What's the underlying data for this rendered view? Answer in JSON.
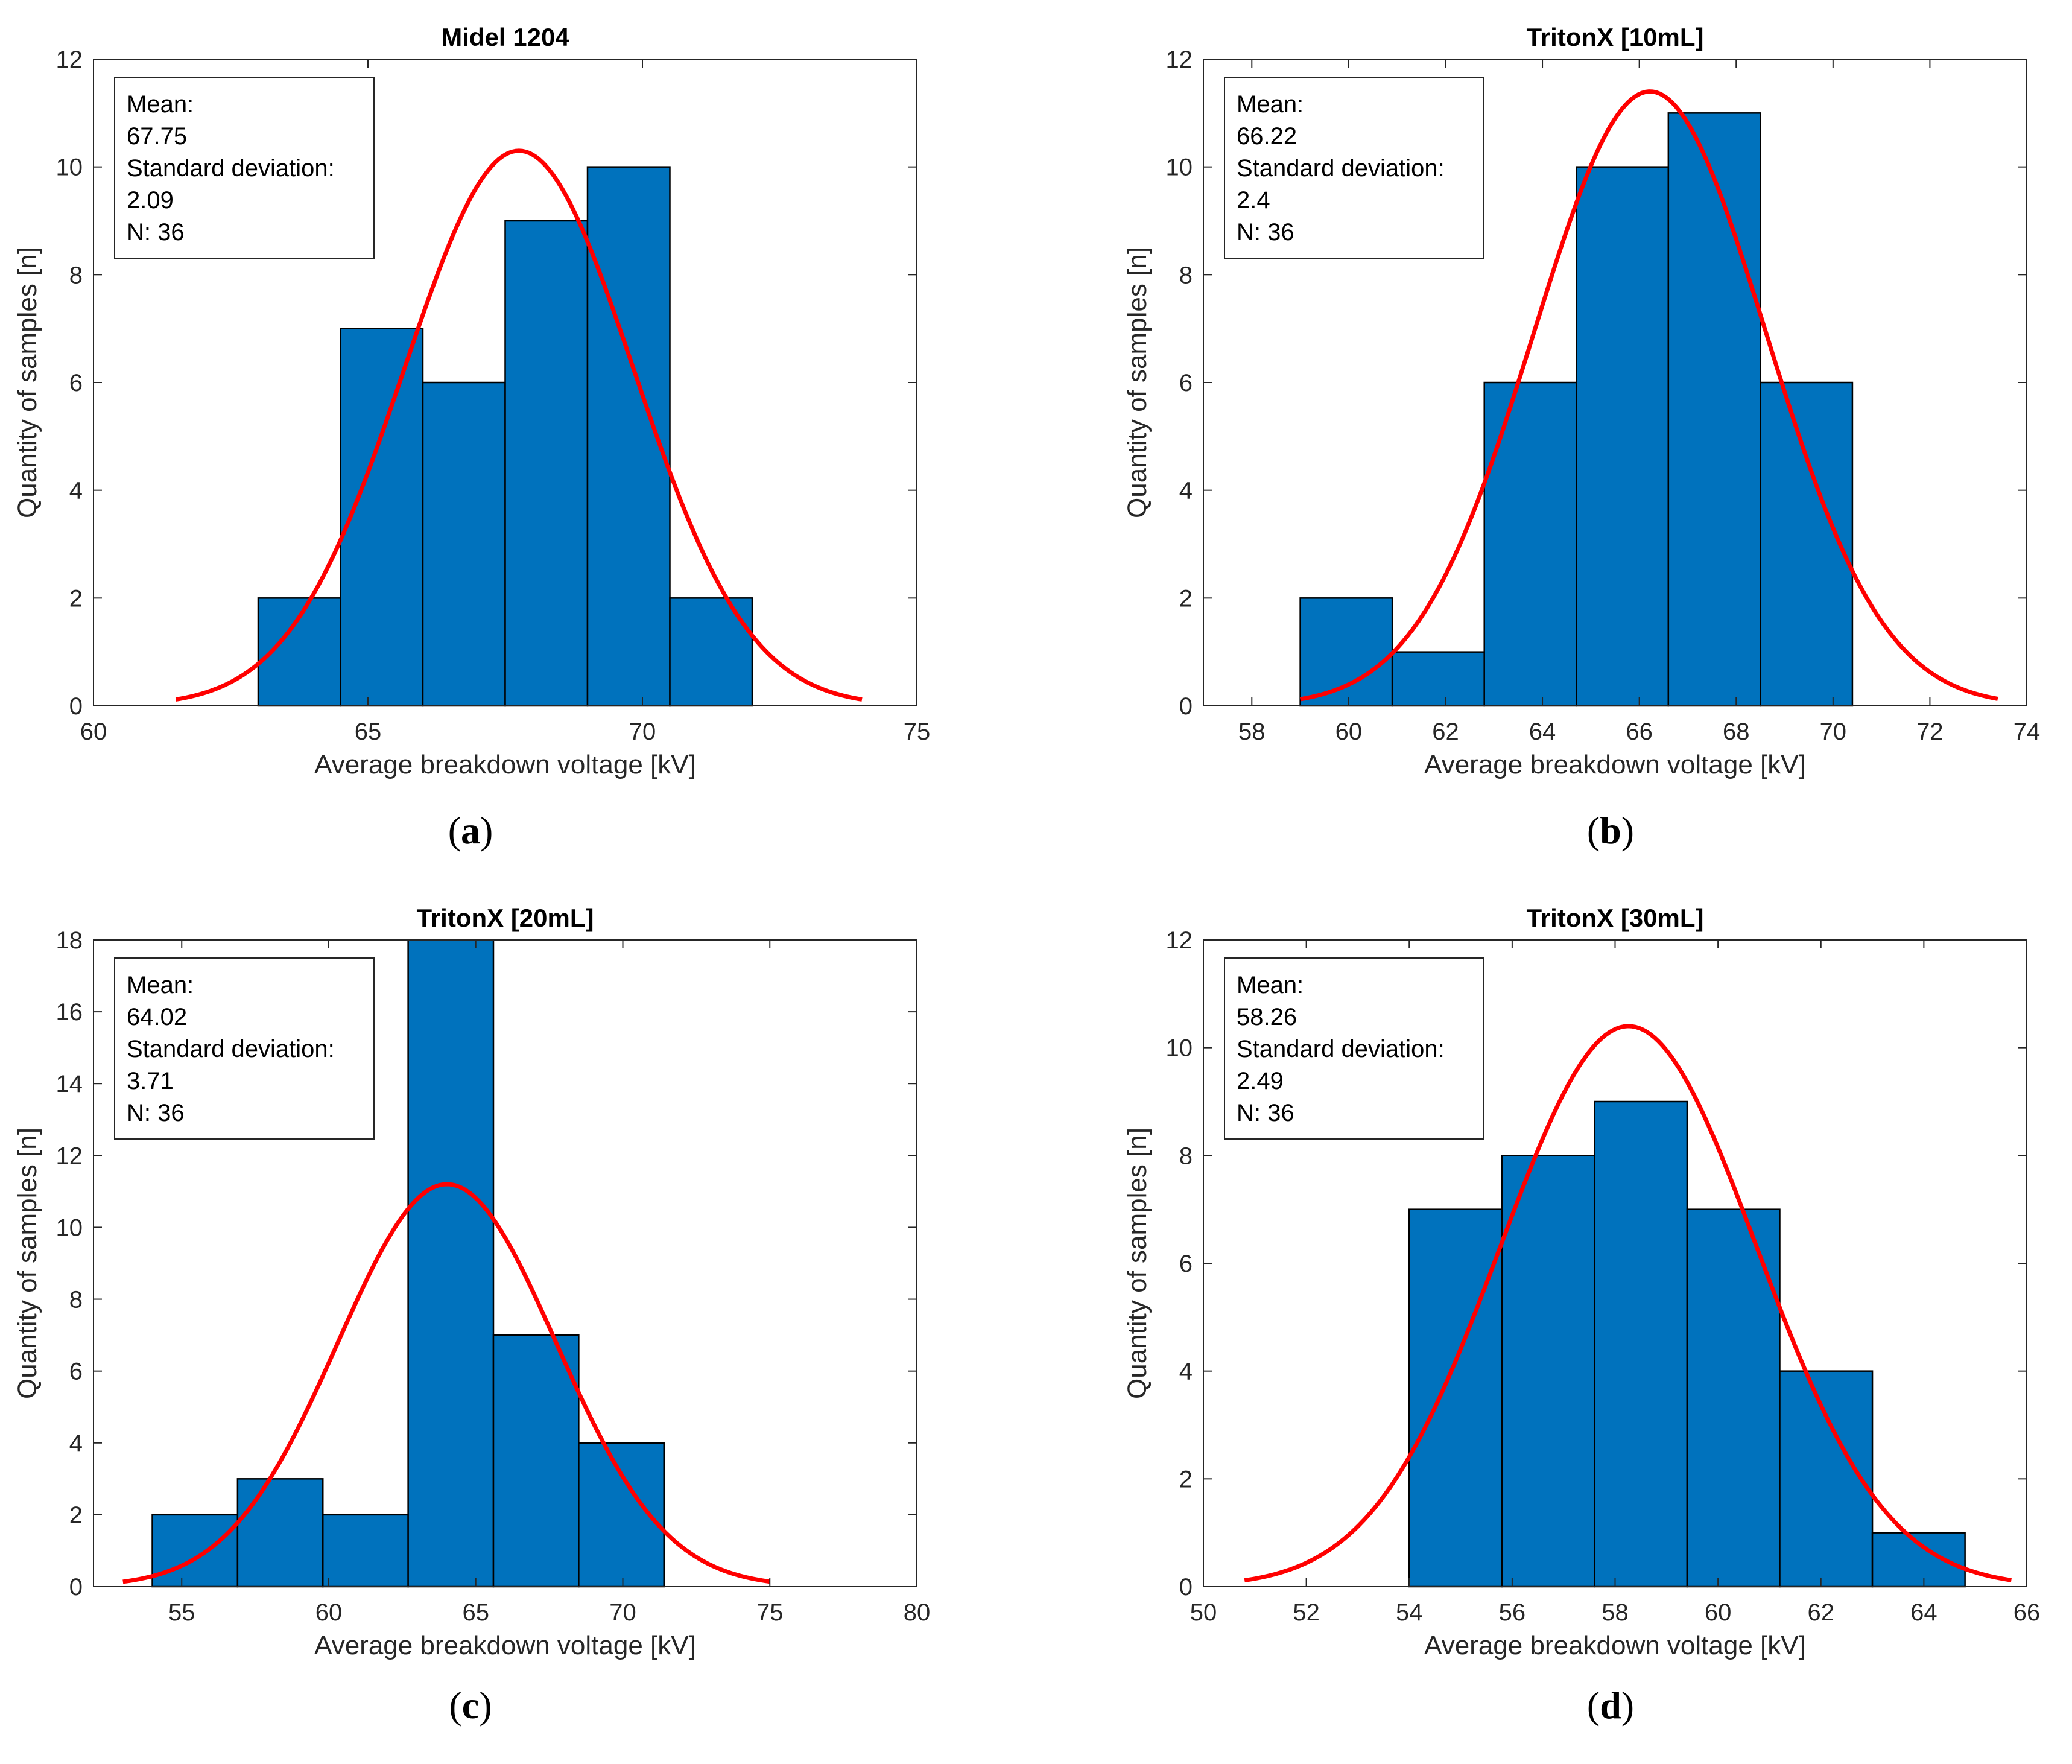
{
  "chart_data": [
    {
      "type": "bar",
      "panel_label": "a",
      "title": "Midel 1204",
      "xlabel": "Average breakdown voltage [kV]",
      "ylabel": "Quantity of samples [n]",
      "xlim": [
        60,
        75
      ],
      "ylim": [
        0,
        12
      ],
      "xticks": [
        60,
        65,
        70,
        75
      ],
      "yticks": [
        0,
        2,
        4,
        6,
        8,
        10,
        12
      ],
      "bins": [
        {
          "x0": 63.0,
          "x1": 64.5,
          "count": 2
        },
        {
          "x0": 64.5,
          "x1": 66.0,
          "count": 7
        },
        {
          "x0": 66.0,
          "x1": 67.5,
          "count": 6
        },
        {
          "x0": 67.5,
          "x1": 69.0,
          "count": 9
        },
        {
          "x0": 69.0,
          "x1": 70.5,
          "count": 10
        },
        {
          "x0": 70.5,
          "x1": 72.0,
          "count": 2
        }
      ],
      "fit": {
        "mean": 67.75,
        "std": 2.09,
        "peak": 10.3,
        "x_start": 61.5,
        "x_end": 74.0
      },
      "stats": {
        "mean_label": "Mean:",
        "mean": "67.75",
        "std_label": "Standard deviation:",
        "std": "2.09",
        "n": "N: 36"
      },
      "grid": false,
      "bar_color": "#0072BD",
      "fit_color": "#FF0000"
    },
    {
      "type": "bar",
      "panel_label": "b",
      "title": "TritonX [10mL]",
      "xlabel": "Average breakdown voltage [kV]",
      "ylabel": "Quantity of samples [n]",
      "xlim": [
        57,
        74
      ],
      "ylim": [
        0,
        12
      ],
      "xticks": [
        58,
        60,
        62,
        64,
        66,
        68,
        70,
        72,
        74
      ],
      "yticks": [
        0,
        2,
        4,
        6,
        8,
        10,
        12
      ],
      "bins": [
        {
          "x0": 59.0,
          "x1": 60.9,
          "count": 2
        },
        {
          "x0": 60.9,
          "x1": 62.8,
          "count": 1
        },
        {
          "x0": 62.8,
          "x1": 64.7,
          "count": 6
        },
        {
          "x0": 64.7,
          "x1": 66.6,
          "count": 10
        },
        {
          "x0": 66.6,
          "x1": 68.5,
          "count": 11
        },
        {
          "x0": 68.5,
          "x1": 70.4,
          "count": 6
        }
      ],
      "fit": {
        "mean": 66.22,
        "std": 2.4,
        "peak": 11.4,
        "x_start": 59.0,
        "x_end": 73.4
      },
      "stats": {
        "mean_label": "Mean:",
        "mean": "66.22",
        "std_label": "Standard deviation:",
        "std": "2.4",
        "n": "N: 36"
      },
      "grid": false,
      "bar_color": "#0072BD",
      "fit_color": "#FF0000"
    },
    {
      "type": "bar",
      "panel_label": "c",
      "title": "TritonX [20mL]",
      "xlabel": "Average breakdown voltage [kV]",
      "ylabel": "Quantity of samples [n]",
      "xlim": [
        52,
        80
      ],
      "ylim": [
        0,
        18
      ],
      "xticks": [
        55,
        60,
        65,
        70,
        75,
        80
      ],
      "yticks": [
        0,
        2,
        4,
        6,
        8,
        10,
        12,
        14,
        16,
        18
      ],
      "bins": [
        {
          "x0": 54.0,
          "x1": 56.9,
          "count": 2
        },
        {
          "x0": 56.9,
          "x1": 59.8,
          "count": 3
        },
        {
          "x0": 59.8,
          "x1": 62.7,
          "count": 2
        },
        {
          "x0": 62.7,
          "x1": 65.6,
          "count": 18
        },
        {
          "x0": 65.6,
          "x1": 68.5,
          "count": 7
        },
        {
          "x0": 68.5,
          "x1": 71.4,
          "count": 4
        }
      ],
      "fit": {
        "mean": 64.02,
        "std": 3.71,
        "peak": 11.2,
        "x_start": 53.0,
        "x_end": 75.0
      },
      "stats": {
        "mean_label": "Mean:",
        "mean": "64.02",
        "std_label": "Standard deviation:",
        "std": "3.71",
        "n": "N: 36"
      },
      "grid": false,
      "bar_color": "#0072BD",
      "fit_color": "#FF0000"
    },
    {
      "type": "bar",
      "panel_label": "d",
      "title": "TritonX [30mL]",
      "xlabel": "Average breakdown voltage [kV]",
      "ylabel": "Quantity of samples [n]",
      "xlim": [
        50,
        66
      ],
      "ylim": [
        0,
        12
      ],
      "xticks": [
        50,
        52,
        54,
        56,
        58,
        60,
        62,
        64,
        66
      ],
      "yticks": [
        0,
        2,
        4,
        6,
        8,
        10,
        12
      ],
      "bins": [
        {
          "x0": 54.0,
          "x1": 55.8,
          "count": 7
        },
        {
          "x0": 55.8,
          "x1": 57.6,
          "count": 8
        },
        {
          "x0": 57.6,
          "x1": 59.4,
          "count": 9
        },
        {
          "x0": 59.4,
          "x1": 61.2,
          "count": 7
        },
        {
          "x0": 61.2,
          "x1": 63.0,
          "count": 4
        },
        {
          "x0": 63.0,
          "x1": 64.8,
          "count": 1
        }
      ],
      "fit": {
        "mean": 58.26,
        "std": 2.49,
        "peak": 10.4,
        "x_start": 50.8,
        "x_end": 65.7
      },
      "stats": {
        "mean_label": "Mean:",
        "mean": "58.26",
        "std_label": "Standard deviation:",
        "std": "2.49",
        "n": "N: 36"
      },
      "grid": false,
      "bar_color": "#0072BD",
      "fit_color": "#FF0000"
    }
  ]
}
